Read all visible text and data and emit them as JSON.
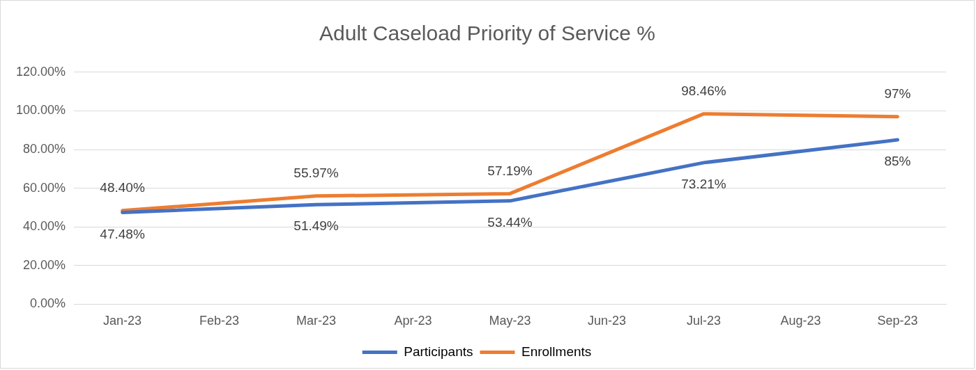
{
  "chart_data": {
    "type": "line",
    "title": "Adult Caseload Priority of Service %",
    "categories": [
      "Jan-23",
      "Feb-23",
      "Mar-23",
      "Apr-23",
      "May-23",
      "Jun-23",
      "Jul-23",
      "Aug-23",
      "Sep-23"
    ],
    "series": [
      {
        "name": "Participants",
        "color": "#4472c4",
        "values": [
          47.48,
          null,
          51.49,
          null,
          53.44,
          null,
          73.21,
          null,
          85
        ],
        "value_labels": [
          "47.48%",
          null,
          "51.49%",
          null,
          "53.44%",
          null,
          "73.21%",
          null,
          "85%"
        ]
      },
      {
        "name": "Enrollments",
        "color": "#ed7d31",
        "values": [
          48.4,
          null,
          55.97,
          null,
          57.19,
          null,
          98.46,
          null,
          97
        ],
        "value_labels": [
          "48.40%",
          null,
          "55.97%",
          null,
          "57.19%",
          null,
          "98.46%",
          null,
          "97%"
        ]
      }
    ],
    "ylim": [
      0,
      120
    ],
    "yticks": [
      {
        "value": 0,
        "label": "0.00%"
      },
      {
        "value": 20,
        "label": "20.00%"
      },
      {
        "value": 40,
        "label": "40.00%"
      },
      {
        "value": 60,
        "label": "60.00%"
      },
      {
        "value": 80,
        "label": "80.00%"
      },
      {
        "value": 100,
        "label": "100.00%"
      },
      {
        "value": 120,
        "label": "120.00%"
      }
    ],
    "grid": "y",
    "legend": "bottom",
    "marker": "none",
    "line_style": "solid"
  }
}
